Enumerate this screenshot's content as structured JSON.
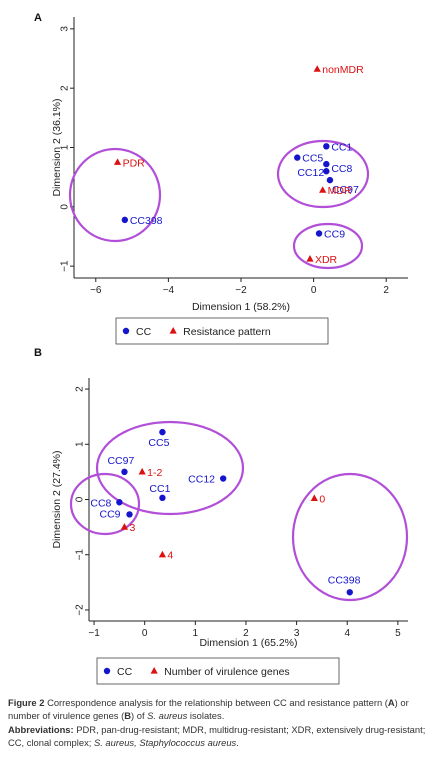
{
  "chart_data": [
    {
      "type": "scatter",
      "panel_label": "A",
      "xlabel": "Dimension 1 (58.2%)",
      "ylabel": "Dimension 2 (36.1%)",
      "xlim": [
        -6.6,
        2.6
      ],
      "ylim": [
        -1.2,
        3.2
      ],
      "xticks": [
        -6,
        -4,
        -2,
        0,
        2
      ],
      "yticks": [
        -1,
        0,
        1,
        2,
        3
      ],
      "legend_position": "bottom",
      "series": [
        {
          "name": "CC",
          "color": "#1515cc",
          "marker": "circle",
          "points": [
            {
              "label": "CC1",
              "x": 0.35,
              "y": 1.02
            },
            {
              "label": "CC5",
              "x": -0.45,
              "y": 0.83
            },
            {
              "label": "CC8",
              "x": 0.35,
              "y": 0.72
            },
            {
              "label": "CC12",
              "x": 0.35,
              "y": 0.6
            },
            {
              "label": "CC97",
              "x": 0.45,
              "y": 0.45
            },
            {
              "label": "CC398",
              "x": -5.2,
              "y": -0.22
            },
            {
              "label": "CC9",
              "x": 0.15,
              "y": -0.45
            }
          ]
        },
        {
          "name": "Resistance pattern",
          "color": "#dd1111",
          "marker": "triangle",
          "points": [
            {
              "label": "nonMDR",
              "x": 0.1,
              "y": 2.32
            },
            {
              "label": "PDR",
              "x": -5.4,
              "y": 0.75
            },
            {
              "label": "MDR",
              "x": 0.25,
              "y": 0.28
            },
            {
              "label": "XDR",
              "x": -0.1,
              "y": -0.88
            }
          ]
        }
      ]
    },
    {
      "type": "scatter",
      "panel_label": "B",
      "xlabel": "Dimension 1 (65.2%)",
      "ylabel": "Dimension 2 (27.4%)",
      "xlim": [
        -1.1,
        5.2
      ],
      "ylim": [
        -2.2,
        2.2
      ],
      "xticks": [
        -1,
        0,
        1,
        2,
        3,
        4,
        5
      ],
      "yticks": [
        -2,
        -1,
        0,
        1,
        2
      ],
      "legend_position": "bottom",
      "series": [
        {
          "name": "CC",
          "color": "#1515cc",
          "marker": "circle",
          "points": [
            {
              "label": "CC5",
              "x": 0.35,
              "y": 1.22
            },
            {
              "label": "CC97",
              "x": -0.4,
              "y": 0.5
            },
            {
              "label": "CC12",
              "x": 1.55,
              "y": 0.38
            },
            {
              "label": "CC1",
              "x": 0.35,
              "y": 0.03
            },
            {
              "label": "CC8",
              "x": -0.5,
              "y": -0.05
            },
            {
              "label": "CC9",
              "x": -0.3,
              "y": -0.27
            },
            {
              "label": "CC398",
              "x": 4.05,
              "y": -1.68
            }
          ]
        },
        {
          "name": "Number of virulence genes",
          "color": "#dd1111",
          "marker": "triangle",
          "points": [
            {
              "label": "1-2",
              "x": -0.05,
              "y": 0.5
            },
            {
              "label": "0",
              "x": 3.35,
              "y": 0.02
            },
            {
              "label": "3",
              "x": -0.4,
              "y": -0.5
            },
            {
              "label": "4",
              "x": 0.35,
              "y": -1.0
            }
          ]
        }
      ]
    }
  ],
  "caption": {
    "figure_label": "Figure 2",
    "text_1": " Correspondence analysis for the relationship between CC and resistance pattern (",
    "a": "A",
    "text_2": ") or number of virulence genes (",
    "b": "B",
    "text_3": ") of ",
    "species_short": "S. aureus",
    "text_4": " isolates.",
    "abbrev_label": "Abbreviations:",
    "abbrev_text": " PDR, pan-drug-resistant; MDR, multidrug-resistant; XDR, extensively drug-resistant; CC, clonal complex; ",
    "abbrev_species_short": "S. aureus,",
    "abbrev_species_full": "Staphylococcus aureus",
    "abbrev_end": "."
  }
}
